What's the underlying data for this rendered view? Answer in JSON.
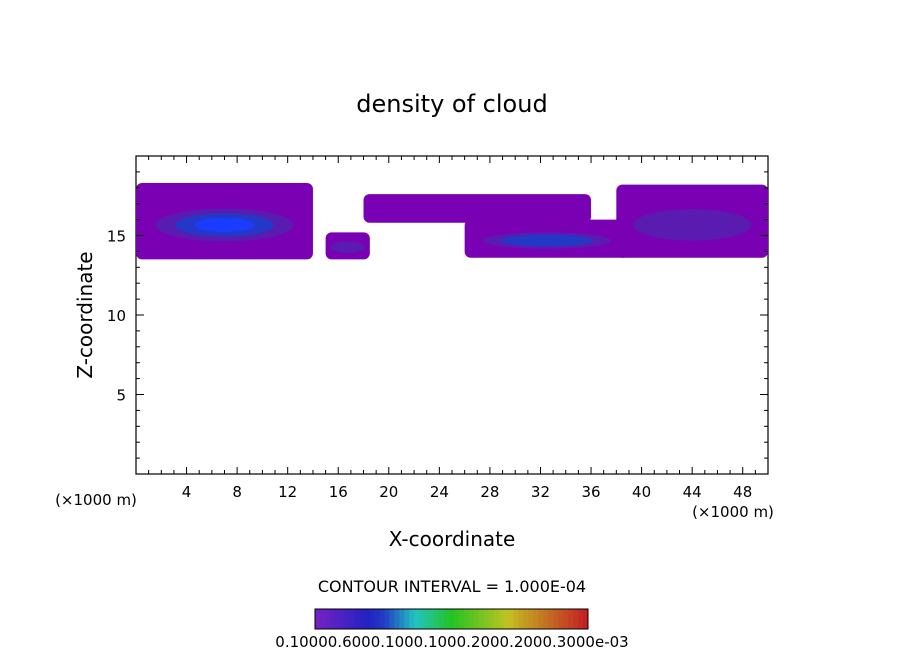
{
  "chart_data": {
    "type": "heatmap",
    "title": "density of cloud",
    "xlabel": "X-coordinate",
    "ylabel": "Z-coordinate",
    "x_unit_left": "(×1000 m)",
    "x_unit_right": "(×1000 m)",
    "xlim": [
      0,
      50
    ],
    "ylim": [
      0,
      20
    ],
    "x_ticks": [
      4,
      8,
      12,
      16,
      20,
      24,
      28,
      32,
      36,
      40,
      44,
      48
    ],
    "y_ticks": [
      5,
      10,
      15
    ],
    "contour_interval_label": "CONTOUR INTERVAL = 1.000E-04",
    "colorbar_labels": "0.10000.6000.1000.1000.2000.2000.3000e-03",
    "colors": {
      "outer": "#7a00b4",
      "mid": "#5a1bb0",
      "inner": "#2438c8",
      "core": "#1a3cff"
    },
    "cloud_regions": [
      {
        "x": [
          0,
          14
        ],
        "z": [
          13.5,
          18.3
        ],
        "max_density_level": 4
      },
      {
        "x": [
          15,
          18.5
        ],
        "z": [
          13.5,
          15.2
        ],
        "max_density_level": 2
      },
      {
        "x": [
          18,
          36
        ],
        "z": [
          15.8,
          17.6
        ],
        "max_density_level": 1
      },
      {
        "x": [
          26,
          39
        ],
        "z": [
          13.6,
          16.0
        ],
        "max_density_level": 3
      },
      {
        "x": [
          38,
          50
        ],
        "z": [
          13.6,
          18.2
        ],
        "max_density_level": 2
      }
    ]
  }
}
